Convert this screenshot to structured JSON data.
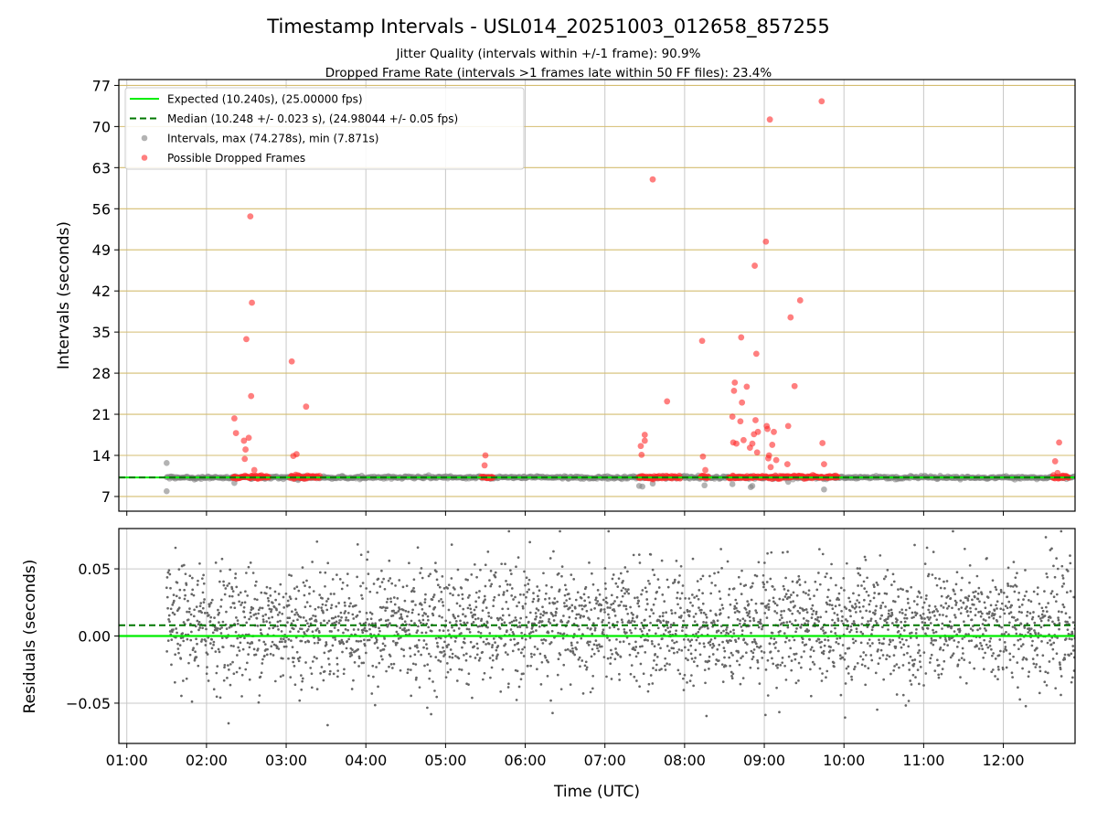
{
  "figure": {
    "title": "Timestamp Intervals - USL014_20251003_012658_857255",
    "subtitle1": "Jitter Quality (intervals within +/-1 frame): 90.9%",
    "subtitle2": "Dropped Frame Rate (intervals >1 frames late within 50 FF files): 23.4%"
  },
  "colors": {
    "expected": "#00ee00",
    "median": "#007700",
    "intervals": "#808080",
    "dropped": "#ff2a2a",
    "hgrid": "#d4bd70",
    "vgrid": "#c8c8c8",
    "residual": "#666666"
  },
  "chart_data": [
    {
      "type": "scatter",
      "id": "intervals",
      "ylabel": "Intervals (seconds)",
      "xlabel": "",
      "ylim": [
        4.5,
        78
      ],
      "yticks": [
        7,
        14,
        21,
        28,
        35,
        42,
        49,
        56,
        63,
        70,
        77
      ],
      "xlim_hours": [
        0.9,
        12.9
      ],
      "legend": {
        "position": "upper-left",
        "entries": [
          {
            "label": "Expected (10.240s), (25.00000 fps)",
            "style": "solid-line",
            "color": "#00ee00"
          },
          {
            "label": "Median (10.248 +/- 0.023 s), (24.98044 +/- 0.05 fps)",
            "style": "dashed-line",
            "color": "#007700"
          },
          {
            "label": "Intervals, max (74.278s), min (7.871s)",
            "style": "marker",
            "color": "#808080"
          },
          {
            "label": "Possible Dropped Frames",
            "style": "marker",
            "color": "#ff2a2a"
          }
        ]
      },
      "expected_interval": 10.24,
      "median_interval": 10.248,
      "interval_max": 74.278,
      "interval_min": 7.871,
      "interval_band": {
        "x_start": 1.5,
        "x_end": 12.9,
        "y": 10.24
      },
      "dropped_bands": [
        [
          2.33,
          2.78
        ],
        [
          3.05,
          3.42
        ],
        [
          5.45,
          5.6
        ],
        [
          7.42,
          7.95
        ],
        [
          8.2,
          8.3
        ],
        [
          8.55,
          9.05
        ],
        [
          9.05,
          9.75
        ],
        [
          9.78,
          9.93
        ],
        [
          12.62,
          12.82
        ]
      ],
      "dropped_points": [
        [
          2.35,
          20.3
        ],
        [
          2.37,
          17.8
        ],
        [
          2.47,
          16.5
        ],
        [
          2.48,
          13.4
        ],
        [
          2.49,
          15.0
        ],
        [
          2.5,
          33.8
        ],
        [
          2.53,
          17.0
        ],
        [
          2.55,
          54.7
        ],
        [
          2.56,
          24.1
        ],
        [
          2.57,
          40.0
        ],
        [
          2.6,
          11.5
        ],
        [
          3.07,
          30.0
        ],
        [
          3.09,
          13.9
        ],
        [
          3.13,
          14.2
        ],
        [
          3.25,
          22.3
        ],
        [
          3.12,
          10.7
        ],
        [
          5.5,
          14.0
        ],
        [
          5.49,
          12.3
        ],
        [
          7.45,
          15.6
        ],
        [
          7.46,
          14.1
        ],
        [
          7.5,
          16.5
        ],
        [
          7.5,
          17.5
        ],
        [
          7.6,
          61.0
        ],
        [
          7.78,
          23.2
        ],
        [
          8.22,
          33.5
        ],
        [
          8.23,
          13.8
        ],
        [
          8.26,
          11.5
        ],
        [
          8.6,
          20.6
        ],
        [
          8.61,
          16.2
        ],
        [
          8.62,
          25.0
        ],
        [
          8.63,
          26.4
        ],
        [
          8.65,
          16.0
        ],
        [
          8.7,
          19.8
        ],
        [
          8.71,
          34.1
        ],
        [
          8.72,
          23.0
        ],
        [
          8.74,
          16.6
        ],
        [
          8.78,
          25.7
        ],
        [
          8.82,
          15.3
        ],
        [
          8.85,
          16.0
        ],
        [
          8.87,
          17.6
        ],
        [
          8.88,
          46.3
        ],
        [
          8.89,
          20.0
        ],
        [
          8.9,
          31.3
        ],
        [
          8.91,
          14.5
        ],
        [
          8.92,
          18.0
        ],
        [
          9.02,
          50.4
        ],
        [
          9.03,
          19.0
        ],
        [
          9.04,
          18.5
        ],
        [
          9.05,
          13.5
        ],
        [
          9.06,
          14.0
        ],
        [
          9.07,
          71.2
        ],
        [
          9.08,
          12.0
        ],
        [
          9.1,
          15.8
        ],
        [
          9.12,
          18.0
        ],
        [
          9.15,
          13.2
        ],
        [
          9.3,
          19.0
        ],
        [
          9.33,
          37.5
        ],
        [
          9.38,
          25.8
        ],
        [
          9.45,
          40.4
        ],
        [
          9.29,
          12.5
        ],
        [
          9.72,
          74.3
        ],
        [
          9.73,
          16.1
        ],
        [
          9.75,
          12.5
        ],
        [
          12.65,
          13.0
        ],
        [
          12.7,
          16.2
        ],
        [
          12.68,
          11.0
        ]
      ],
      "low_outliers": [
        [
          1.5,
          12.7
        ],
        [
          1.5,
          7.9
        ],
        [
          2.35,
          9.3
        ],
        [
          3.15,
          9.8
        ],
        [
          7.43,
          8.8
        ],
        [
          7.47,
          8.7
        ],
        [
          7.6,
          9.2
        ],
        [
          8.25,
          8.9
        ],
        [
          8.6,
          9.1
        ],
        [
          8.83,
          8.6
        ],
        [
          8.85,
          8.8
        ],
        [
          9.3,
          9.5
        ],
        [
          9.75,
          8.2
        ]
      ]
    },
    {
      "type": "scatter",
      "id": "residuals",
      "ylabel": "Residuals (seconds)",
      "xlabel": "Time (UTC)",
      "ylim": [
        -0.08,
        0.08
      ],
      "yticks": [
        -0.05,
        0.0,
        0.05
      ],
      "ytick_labels": [
        "−0.05",
        "0.00",
        "0.05"
      ],
      "xlim_hours": [
        0.9,
        12.9
      ],
      "xtick_hours": [
        1,
        2,
        3,
        4,
        5,
        6,
        7,
        8,
        9,
        10,
        11,
        12
      ],
      "xtick_labels": [
        "01:00",
        "02:00",
        "03:00",
        "04:00",
        "05:00",
        "06:00",
        "07:00",
        "08:00",
        "09:00",
        "10:00",
        "11:00",
        "12:00"
      ],
      "expected_residual": 0.0,
      "median_residual": 0.008,
      "residual_spread_sd": 0.022,
      "residual_range": [
        -0.072,
        0.078
      ],
      "x_start": 1.5,
      "x_end": 12.9
    }
  ]
}
